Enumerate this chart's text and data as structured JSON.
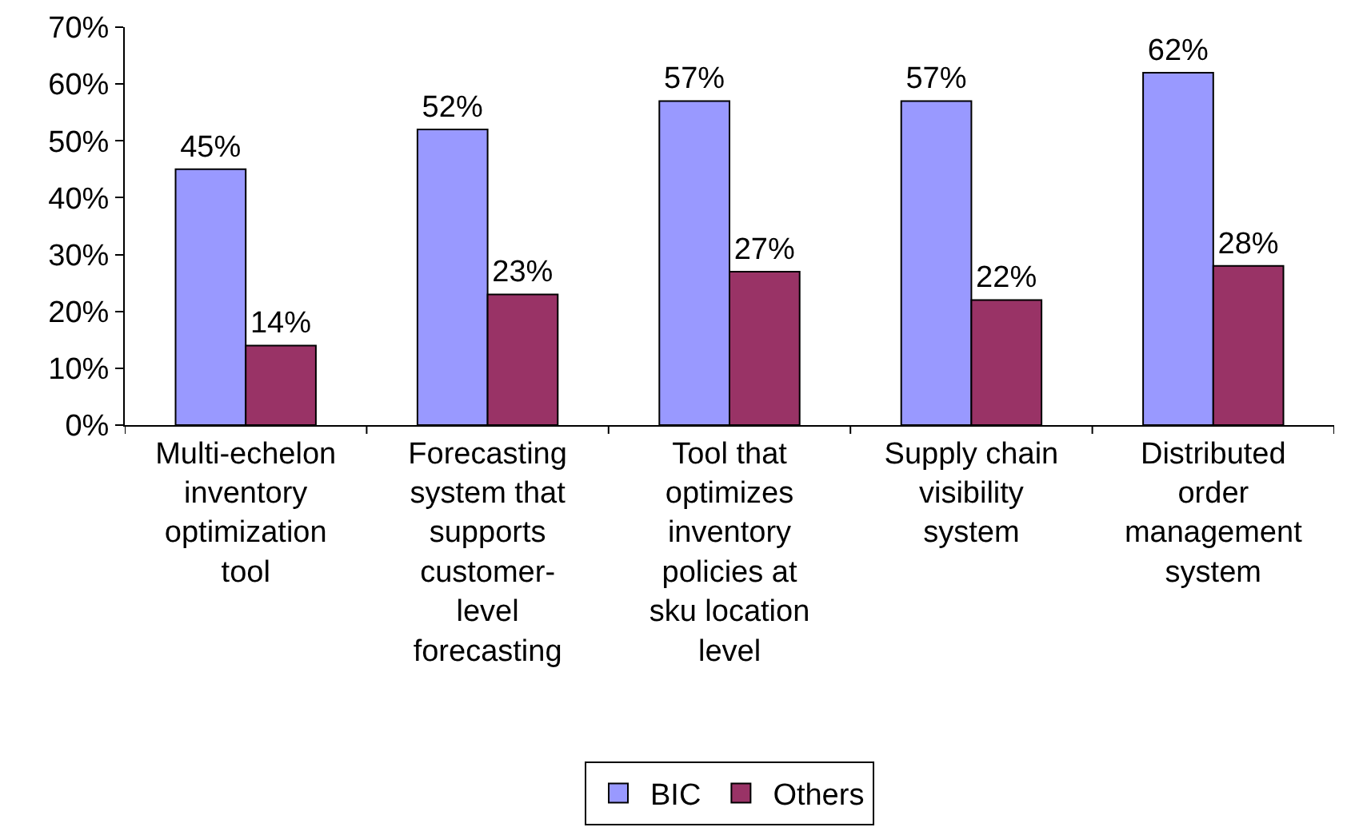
{
  "chart_data": {
    "type": "bar",
    "categories": [
      "Multi-echelon inventory optimization tool",
      "Forecasting system that supports customer-level forecasting",
      "Tool that optimizes inventory policies at sku location level",
      "Supply chain visibility system",
      "Distributed order management system"
    ],
    "series": [
      {
        "name": "BIC",
        "color": "#9999ff",
        "values": [
          45,
          52,
          57,
          57,
          62
        ],
        "value_labels": [
          "45%",
          "52%",
          "57%",
          "57%",
          "62%"
        ]
      },
      {
        "name": "Others",
        "color": "#993366",
        "values": [
          14,
          23,
          27,
          22,
          28
        ],
        "value_labels": [
          "14%",
          "23%",
          "27%",
          "22%",
          "28%"
        ]
      }
    ],
    "ylim": [
      0,
      70
    ],
    "yticks": [
      {
        "value": 0,
        "label": "0%"
      },
      {
        "value": 10,
        "label": "10%"
      },
      {
        "value": 20,
        "label": "20%"
      },
      {
        "value": 30,
        "label": "30%"
      },
      {
        "value": 40,
        "label": "40%"
      },
      {
        "value": 50,
        "label": "50%"
      },
      {
        "value": 60,
        "label": "60%"
      },
      {
        "value": 70,
        "label": "70%"
      }
    ],
    "grid": false,
    "legend": "bottom"
  }
}
